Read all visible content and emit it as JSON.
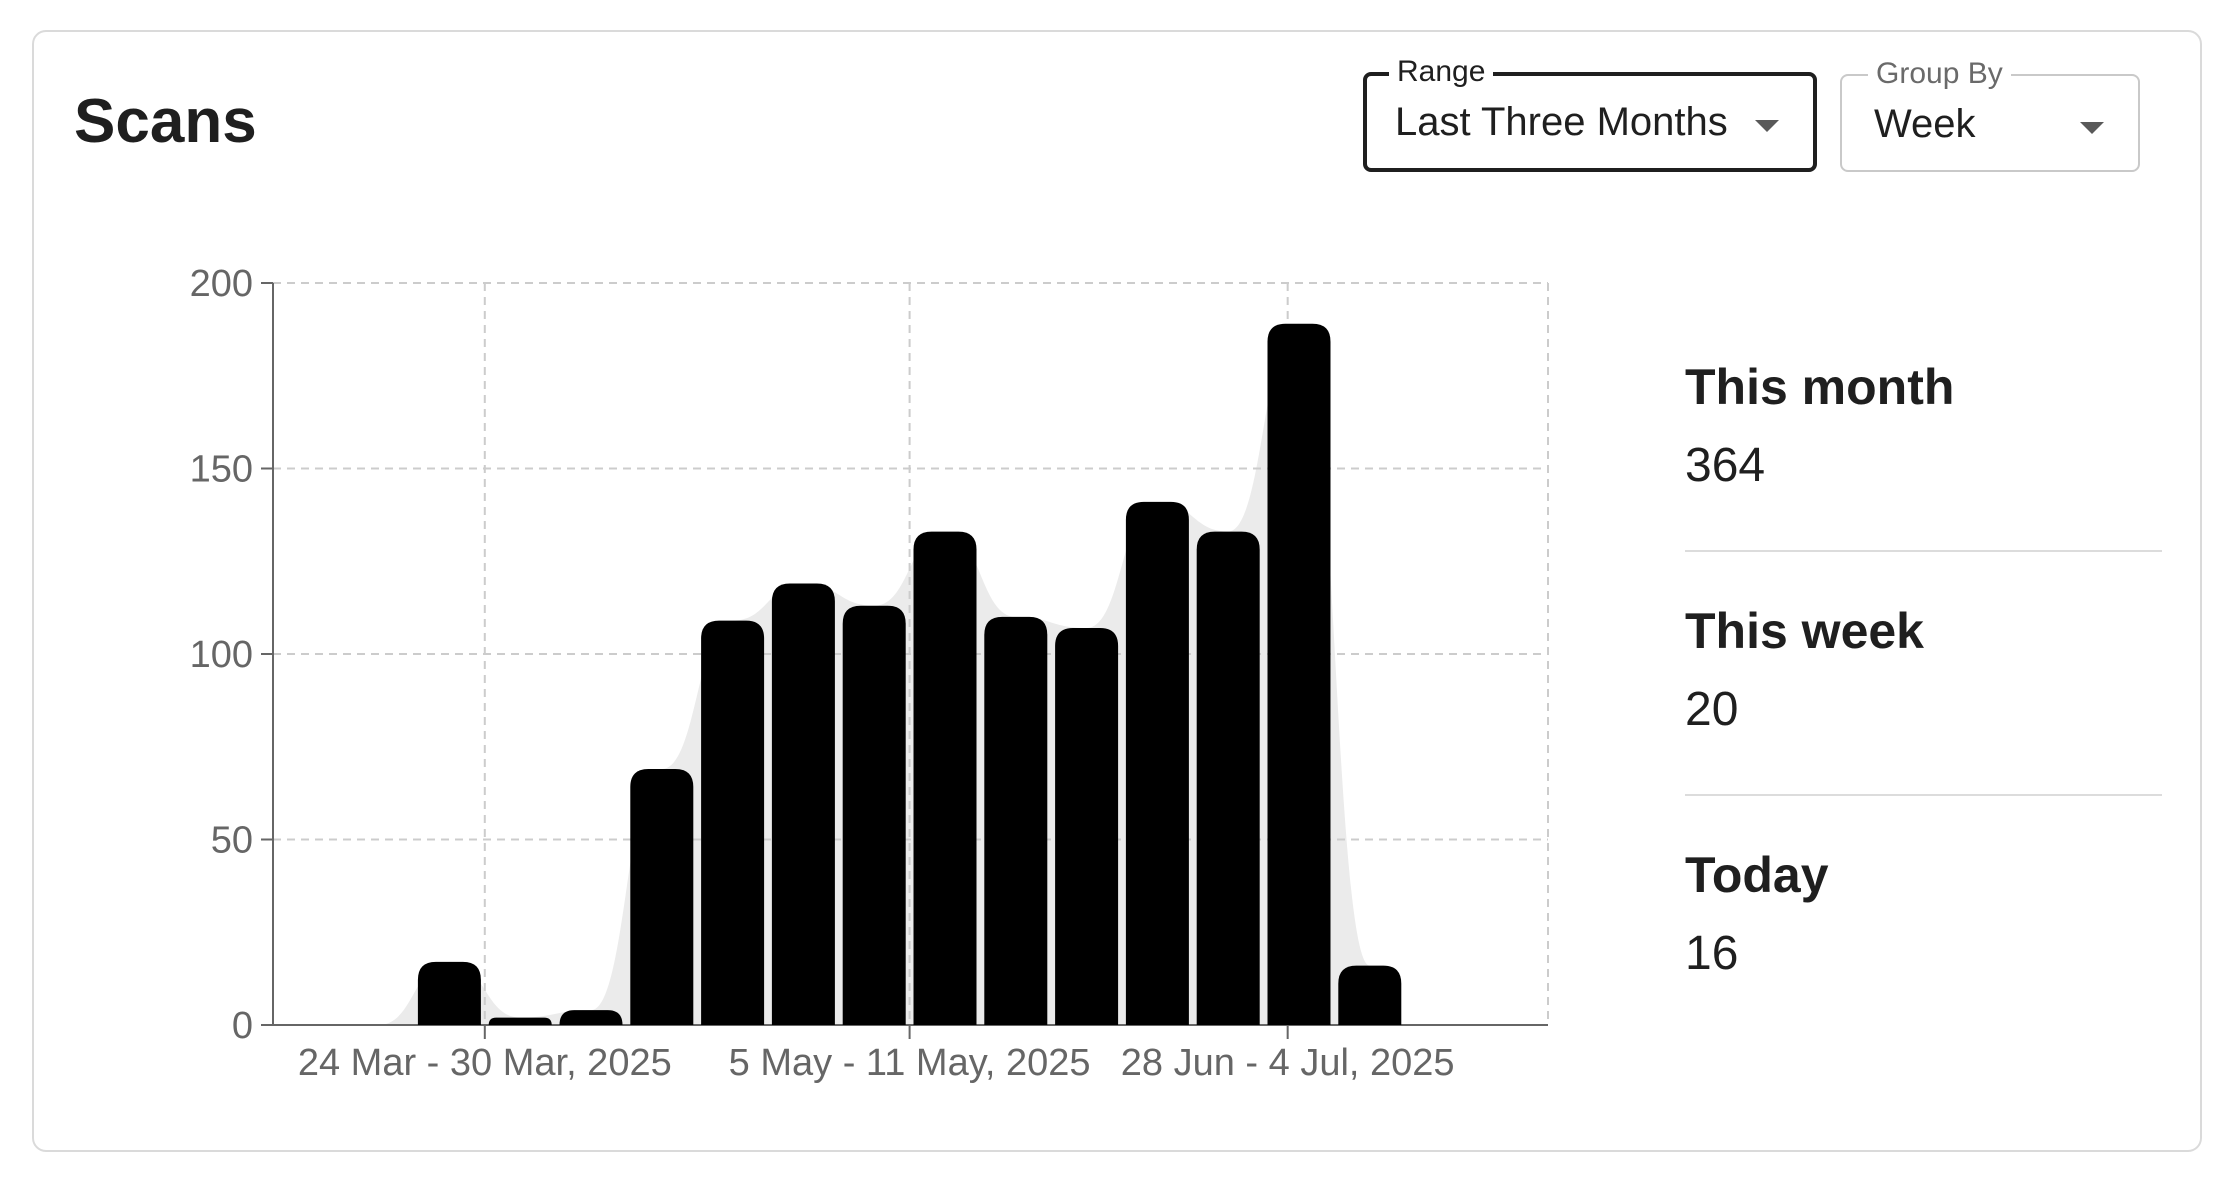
{
  "card": {
    "title": "Scans"
  },
  "controls": {
    "range": {
      "label": "Range",
      "value": "Last Three Months"
    },
    "group_by": {
      "label": "Group By",
      "value": "Week"
    }
  },
  "stats": [
    {
      "label": "This month",
      "value": "364"
    },
    {
      "label": "This week",
      "value": "20"
    },
    {
      "label": "Today",
      "value": "16"
    }
  ],
  "colors": {
    "bar": "#000000",
    "area": "#ebebeb",
    "grid": "#cccccc",
    "axis": "#666666"
  },
  "chart_data": {
    "type": "bar",
    "title": "",
    "xlabel": "",
    "ylabel": "",
    "ylim": [
      0,
      200
    ],
    "y_ticks": [
      0,
      50,
      100,
      150,
      200
    ],
    "x_tick_labels": [
      "24 Mar - 30 Mar, 2025",
      "5 May - 11 May, 2025",
      "28 Jun - 4 Jul, 2025"
    ],
    "grid": true,
    "series": [
      {
        "values": [
          0,
          0,
          0,
          17,
          2,
          4,
          69,
          109,
          119,
          113,
          133,
          110,
          107,
          141,
          133,
          189,
          16
        ]
      }
    ]
  }
}
